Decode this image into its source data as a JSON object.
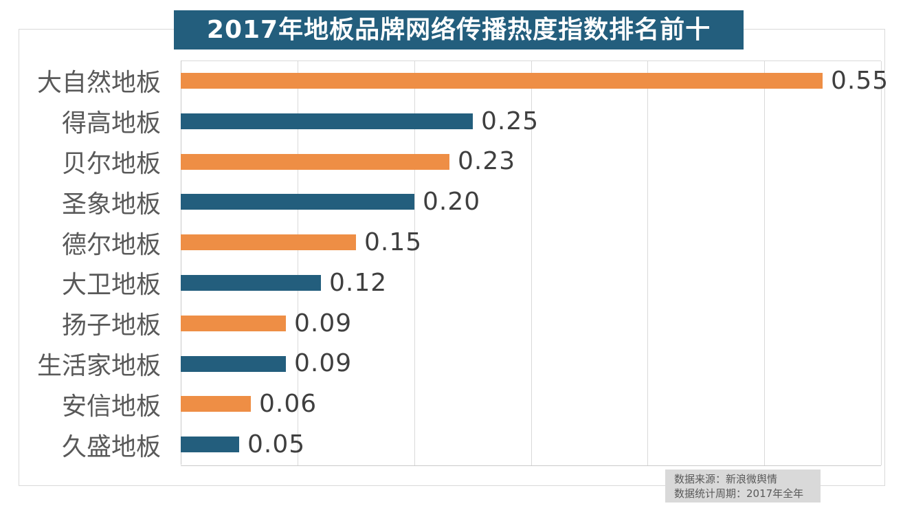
{
  "title": "2017年地板品牌网络传播热度指数排名前十",
  "source_note": {
    "line1": "数据来源：新浪微舆情",
    "line2": "数据统计周期：2017年全年"
  },
  "colors": {
    "background": "#FFFFFF",
    "title_bg": "#235E7D",
    "title_text": "#FFFFFF",
    "bar_orange": "#EE8E45",
    "bar_blue": "#235E7D",
    "grid_line": "#D9D9D9",
    "axis_line": "#C9C9C9",
    "chart_border": "#D9D9D9",
    "category_label": "#595959",
    "value_label": "#3F3F3F",
    "source_bg": "#D9D9D9",
    "source_text": "#595959"
  },
  "chart_data": {
    "type": "bar",
    "orientation": "horizontal",
    "title": "2017年地板品牌网络传播热度指数排名前十",
    "categories": [
      "大自然地板",
      "得高地板",
      "贝尔地板",
      "圣象地板",
      "德尔地板",
      "大卫地板",
      "扬子地板",
      "生活家地板",
      "安信地板",
      "久盛地板"
    ],
    "values": [
      0.55,
      0.25,
      0.23,
      0.2,
      0.15,
      0.12,
      0.09,
      0.09,
      0.06,
      0.05
    ],
    "value_labels": [
      "0.55",
      "0.25",
      "0.23",
      "0.20",
      "0.15",
      "0.12",
      "0.09",
      "0.09",
      "0.06",
      "0.05"
    ],
    "bar_color_pattern": [
      "orange",
      "blue"
    ],
    "xlim": [
      0,
      0.6
    ],
    "grid_interval": 0.1,
    "grid": "vertical gridlines every 0.1 from 0 to 0.6, no tick labels shown",
    "legend": "none",
    "data_labels": "outside-end"
  }
}
